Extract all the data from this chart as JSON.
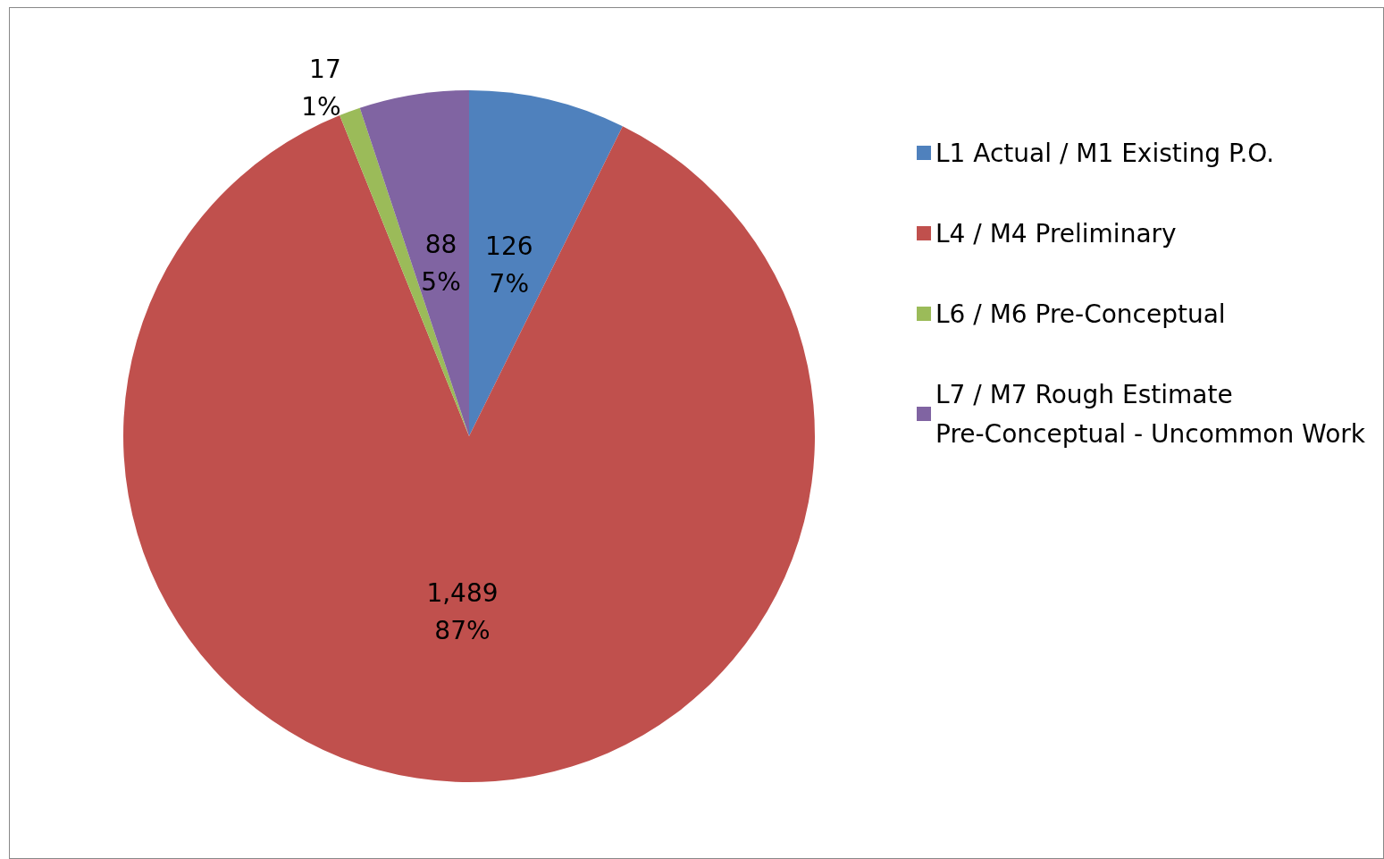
{
  "chart_data": {
    "type": "pie",
    "categories": [
      "L1 Actual / M1 Existing P.O.",
      "L4 / M4 Preliminary",
      "L6 / M6 Pre-Conceptual",
      "L7 / M7 Rough Estimate Pre-Conceptual - Uncommon Work"
    ],
    "values": [
      126,
      1489,
      17,
      88
    ],
    "colors": [
      "#4f81bd",
      "#c0504d",
      "#9bbb59",
      "#8064a2"
    ],
    "value_labels": [
      "126\n7%",
      "1,489\n87%",
      "17\n1%",
      "88\n5%"
    ],
    "legend": "right"
  }
}
